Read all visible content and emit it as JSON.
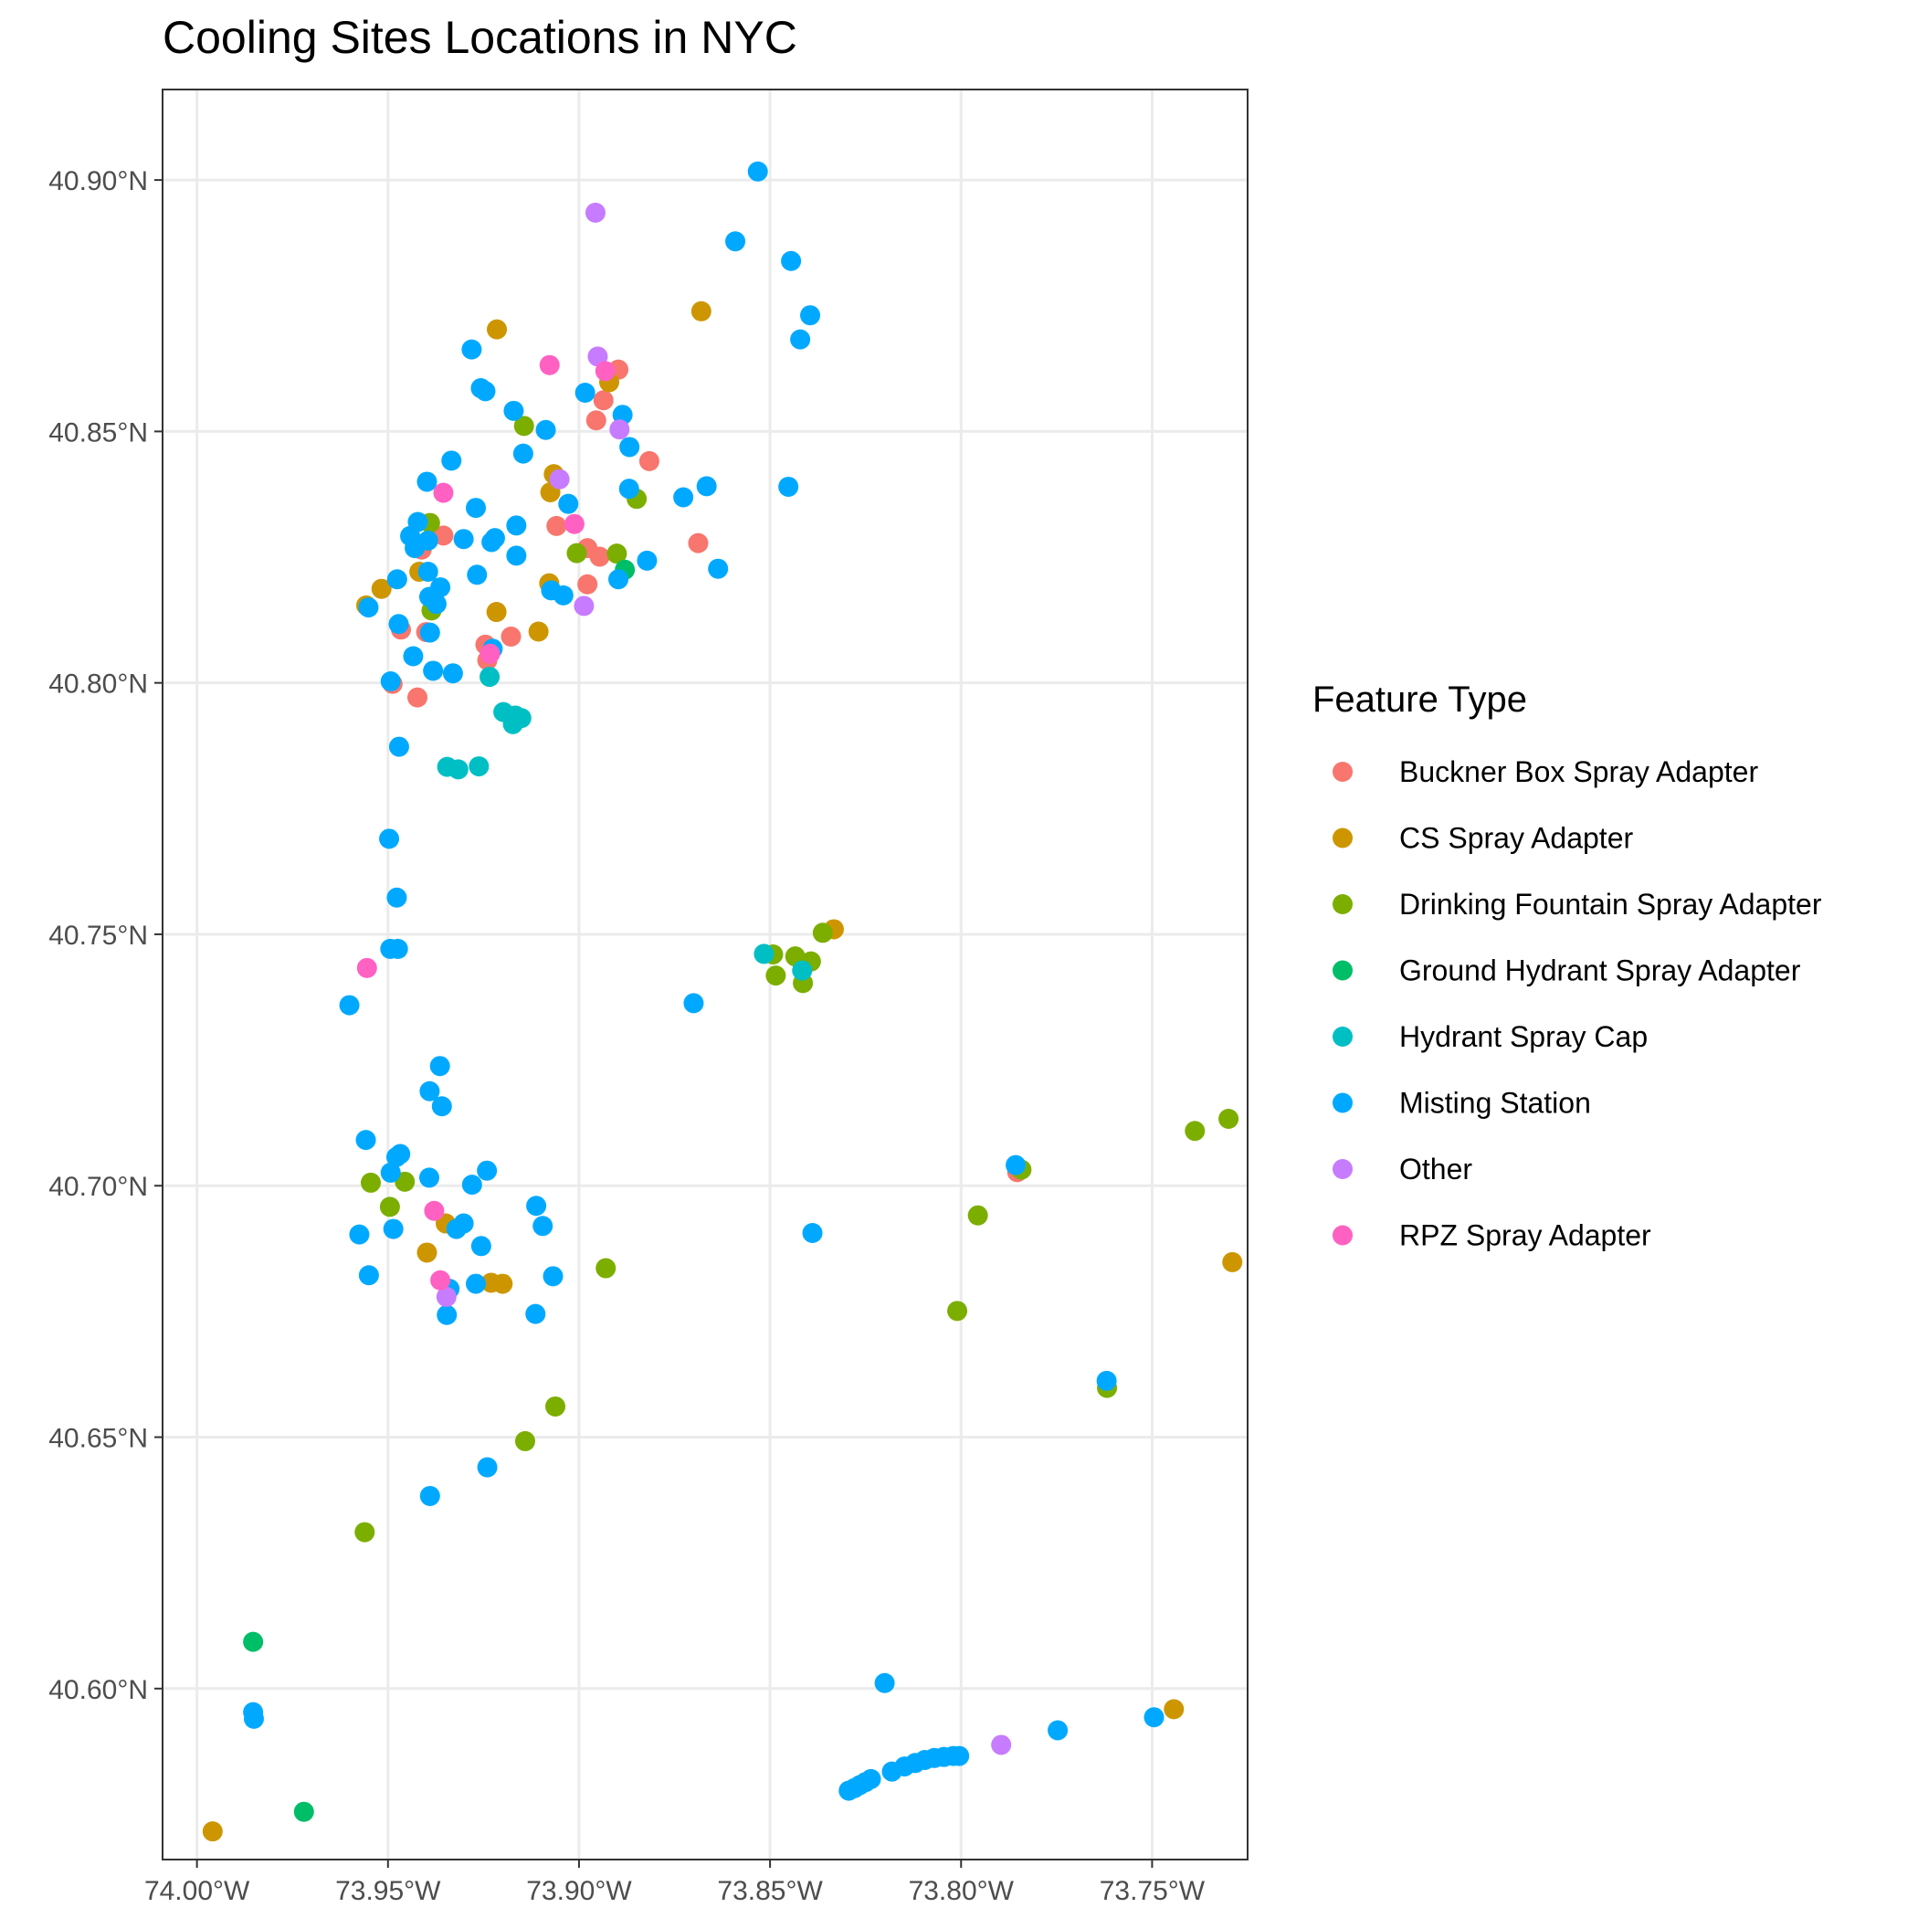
{
  "chart_data": {
    "type": "scatter",
    "title": "Cooling Sites Locations in NYC",
    "xlabel": "",
    "ylabel": "",
    "xlim": [
      -74.009,
      -73.725
    ],
    "ylim": [
      40.566,
      40.918
    ],
    "x_ticks": [
      {
        "value": -74.0,
        "label": "74.00°W"
      },
      {
        "value": -73.95,
        "label": "73.95°W"
      },
      {
        "value": -73.9,
        "label": "73.90°W"
      },
      {
        "value": -73.85,
        "label": "73.85°W"
      },
      {
        "value": -73.8,
        "label": "73.80°W"
      },
      {
        "value": -73.75,
        "label": "73.75°W"
      }
    ],
    "y_ticks": [
      {
        "value": 40.6,
        "label": "40.60°N"
      },
      {
        "value": 40.65,
        "label": "40.65°N"
      },
      {
        "value": 40.7,
        "label": "40.70°N"
      },
      {
        "value": 40.75,
        "label": "40.75°N"
      },
      {
        "value": 40.8,
        "label": "40.80°N"
      },
      {
        "value": 40.85,
        "label": "40.85°N"
      },
      {
        "value": 40.9,
        "label": "40.90°N"
      }
    ],
    "grid": true,
    "legend": {
      "title": "Feature Type",
      "position": "right"
    },
    "series": [
      {
        "name": "Buckner Box Spray Adapter",
        "color": "#F8766D",
        "points": [
          [
            -73.9488,
            40.7998
          ],
          [
            -73.9423,
            40.7971
          ],
          [
            -73.9466,
            40.8106
          ],
          [
            -73.94,
            40.8101
          ],
          [
            -73.9245,
            40.8076
          ],
          [
            -73.9178,
            40.8092
          ],
          [
            -73.9355,
            40.8293
          ],
          [
            -73.9412,
            40.8265
          ],
          [
            -73.9059,
            40.8312
          ],
          [
            -73.8978,
            40.8268
          ],
          [
            -73.8946,
            40.8251
          ],
          [
            -73.8978,
            40.8196
          ],
          [
            -73.8936,
            40.8562
          ],
          [
            -73.8955,
            40.8522
          ],
          [
            -73.8897,
            40.8623
          ],
          [
            -73.8816,
            40.8441
          ],
          [
            -73.8688,
            40.8278
          ],
          [
            -73.7853,
            40.7027
          ],
          [
            -73.924,
            40.8045
          ]
        ]
      },
      {
        "name": "CS Spray Adapter",
        "color": "#CD9600",
        "points": [
          [
            -73.9557,
            40.8154
          ],
          [
            -73.9517,
            40.8187
          ],
          [
            -73.9418,
            40.8221
          ],
          [
            -73.9216,
            40.8141
          ],
          [
            -73.9106,
            40.8102
          ],
          [
            -73.9078,
            40.8198
          ],
          [
            -73.9075,
            40.8379
          ],
          [
            -73.9066,
            40.8415
          ],
          [
            -73.9215,
            40.8703
          ],
          [
            -73.8921,
            40.8598
          ],
          [
            -73.868,
            40.8739
          ],
          [
            -73.8333,
            40.751
          ],
          [
            -73.9349,
            40.6925
          ],
          [
            -73.9398,
            40.6867
          ],
          [
            -73.923,
            40.6807
          ],
          [
            -73.92,
            40.6805
          ],
          [
            -73.729,
            40.6848
          ],
          [
            -73.7443,
            40.5959
          ],
          [
            -73.9959,
            40.5716
          ]
        ]
      },
      {
        "name": "Drinking Fountain Spray Adapter",
        "color": "#7CAE00",
        "points": [
          [
            -73.9144,
            40.8511
          ],
          [
            -73.939,
            40.8318
          ],
          [
            -73.9386,
            40.8144
          ],
          [
            -73.9006,
            40.8258
          ],
          [
            -73.8901,
            40.8257
          ],
          [
            -73.8849,
            40.8366
          ],
          [
            -73.8362,
            40.7503
          ],
          [
            -73.8434,
            40.7456
          ],
          [
            -73.8393,
            40.7446
          ],
          [
            -73.8485,
            40.7418
          ],
          [
            -73.8414,
            40.7403
          ],
          [
            -73.9545,
            40.7006
          ],
          [
            -73.9456,
            40.7008
          ],
          [
            -73.9495,
            40.6958
          ],
          [
            -73.893,
            40.6836
          ],
          [
            -73.9062,
            40.6561
          ],
          [
            -73.9141,
            40.6492
          ],
          [
            -73.9561,
            40.6311
          ],
          [
            -73.7956,
            40.6941
          ],
          [
            -73.801,
            40.6751
          ],
          [
            -73.7618,
            40.6598
          ],
          [
            -73.7842,
            40.7032
          ],
          [
            -73.7388,
            40.7109
          ],
          [
            -73.73,
            40.7133
          ],
          [
            -73.8492,
            40.746
          ]
        ]
      },
      {
        "name": "Ground Hydrant Spray Adapter",
        "color": "#00BE67",
        "points": [
          [
            -73.888,
            40.8225
          ],
          [
            -73.9853,
            40.6093
          ],
          [
            -73.972,
            40.5755
          ]
        ]
      },
      {
        "name": "Hydrant Spray Cap",
        "color": "#00BFC4",
        "points": [
          [
            -73.9234,
            40.8012
          ],
          [
            -73.9198,
            40.7942
          ],
          [
            -73.9173,
            40.7918
          ],
          [
            -73.9151,
            40.793
          ],
          [
            -73.9167,
            40.7935
          ],
          [
            -73.9345,
            40.7833
          ],
          [
            -73.9316,
            40.7828
          ],
          [
            -73.9262,
            40.7834
          ],
          [
            -73.8516,
            40.7461
          ],
          [
            -73.8416,
            40.7428
          ]
        ]
      },
      {
        "name": "Misting Station",
        "color": "#00A9FF",
        "points": [
          [
            -73.8532,
            40.9017
          ],
          [
            -73.8591,
            40.8878
          ],
          [
            -73.8445,
            40.8839
          ],
          [
            -73.8395,
            40.8731
          ],
          [
            -73.8421,
            40.8683
          ],
          [
            -73.9281,
            40.8663
          ],
          [
            -73.9257,
            40.8586
          ],
          [
            -73.9245,
            40.858
          ],
          [
            -73.9171,
            40.8541
          ],
          [
            -73.9087,
            40.8503
          ],
          [
            -73.8984,
            40.8577
          ],
          [
            -73.8886,
            40.8533
          ],
          [
            -73.8868,
            40.8469
          ],
          [
            -73.9146,
            40.8456
          ],
          [
            -73.9334,
            40.8442
          ],
          [
            -73.9398,
            40.84
          ],
          [
            -73.8869,
            40.8386
          ],
          [
            -73.8666,
            40.8391
          ],
          [
            -73.8727,
            40.8369
          ],
          [
            -73.8452,
            40.839
          ],
          [
            -73.9028,
            40.8356
          ],
          [
            -73.927,
            40.8348
          ],
          [
            -73.9164,
            40.8313
          ],
          [
            -73.9422,
            40.832
          ],
          [
            -73.9442,
            40.8292
          ],
          [
            -73.9395,
            40.8283
          ],
          [
            -73.9302,
            40.8286
          ],
          [
            -73.9229,
            40.828
          ],
          [
            -73.922,
            40.8288
          ],
          [
            -73.943,
            40.8268
          ],
          [
            -73.9164,
            40.8253
          ],
          [
            -73.8822,
            40.8243
          ],
          [
            -73.8636,
            40.8227
          ],
          [
            -73.9395,
            40.8221
          ],
          [
            -73.9267,
            40.8215
          ],
          [
            -73.9476,
            40.8206
          ],
          [
            -73.9363,
            40.819
          ],
          [
            -73.9073,
            40.8184
          ],
          [
            -73.9041,
            40.8174
          ],
          [
            -73.9392,
            40.8171
          ],
          [
            -73.9373,
            40.8157
          ],
          [
            -73.8897,
            40.8206
          ],
          [
            -73.9551,
            40.815
          ],
          [
            -73.9472,
            40.8117
          ],
          [
            -73.939,
            40.81
          ],
          [
            -73.9226,
            40.8068
          ],
          [
            -73.9434,
            40.8053
          ],
          [
            -73.9493,
            40.8003
          ],
          [
            -73.9382,
            40.8024
          ],
          [
            -73.933,
            40.8019
          ],
          [
            -73.9471,
            40.7873
          ],
          [
            -73.9497,
            40.769
          ],
          [
            -73.9477,
            40.7573
          ],
          [
            -73.9494,
            40.7471
          ],
          [
            -73.9474,
            40.7471
          ],
          [
            -73.9601,
            40.7359
          ],
          [
            -73.87,
            40.7363
          ],
          [
            -73.9364,
            40.7238
          ],
          [
            -73.9391,
            40.7188
          ],
          [
            -73.9359,
            40.7158
          ],
          [
            -73.9558,
            40.7091
          ],
          [
            -73.9468,
            40.7063
          ],
          [
            -73.9478,
            40.7057
          ],
          [
            -73.9493,
            40.7026
          ],
          [
            -73.9392,
            40.7016
          ],
          [
            -73.9241,
            40.703
          ],
          [
            -73.928,
            40.7002
          ],
          [
            -73.9112,
            40.696
          ],
          [
            -73.9095,
            40.692
          ],
          [
            -73.9302,
            40.6925
          ],
          [
            -73.9321,
            40.6914
          ],
          [
            -73.9575,
            40.6903
          ],
          [
            -73.9486,
            40.6914
          ],
          [
            -73.8389,
            40.6906
          ],
          [
            -73.9256,
            40.688
          ],
          [
            -73.955,
            40.6822
          ],
          [
            -73.927,
            40.6805
          ],
          [
            -73.9339,
            40.6795
          ],
          [
            -73.9068,
            40.682
          ],
          [
            -73.9346,
            40.6743
          ],
          [
            -73.9114,
            40.6745
          ],
          [
            -73.924,
            40.644
          ],
          [
            -73.939,
            40.6383
          ],
          [
            -73.9853,
            40.5953
          ],
          [
            -73.9851,
            40.594
          ],
          [
            -73.82,
            40.6011
          ],
          [
            -73.7619,
            40.6612
          ],
          [
            -73.7857,
            40.7041
          ],
          [
            -73.7747,
            40.5917
          ],
          [
            -73.7495,
            40.5943
          ],
          [
            -73.8294,
            40.5797
          ],
          [
            -73.8279,
            40.5802
          ],
          [
            -73.8265,
            40.5808
          ],
          [
            -73.825,
            40.5814
          ],
          [
            -73.8236,
            40.582
          ],
          [
            -73.8181,
            40.5835
          ],
          [
            -73.8148,
            40.5845
          ],
          [
            -73.812,
            40.5852
          ],
          [
            -73.8095,
            40.5858
          ],
          [
            -73.807,
            40.5862
          ],
          [
            -73.8045,
            40.5864
          ],
          [
            -73.802,
            40.5866
          ],
          [
            -73.8005,
            40.5866
          ]
        ]
      },
      {
        "name": "Other",
        "color": "#C77CFF",
        "points": [
          [
            -73.8957,
            40.8935
          ],
          [
            -73.8951,
            40.8649
          ],
          [
            -73.8894,
            40.8504
          ],
          [
            -73.9051,
            40.8405
          ],
          [
            -73.8987,
            40.8153
          ],
          [
            -73.9347,
            40.6779
          ],
          [
            -73.7895,
            40.5888
          ]
        ]
      },
      {
        "name": "RPZ Spray Adapter",
        "color": "#FF61C3",
        "points": [
          [
            -73.9077,
            40.8632
          ],
          [
            -73.8931,
            40.862
          ],
          [
            -73.9355,
            40.8378
          ],
          [
            -73.9012,
            40.8316
          ],
          [
            -73.9233,
            40.8058
          ],
          [
            -73.9555,
            40.7433
          ],
          [
            -73.9379,
            40.695
          ],
          [
            -73.9363,
            40.6812
          ]
        ]
      }
    ]
  }
}
